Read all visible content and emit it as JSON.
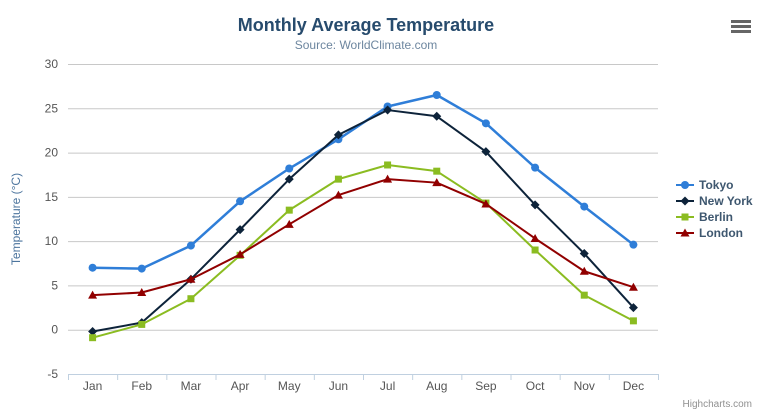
{
  "chart_data": {
    "type": "line",
    "title": "Monthly Average Temperature",
    "subtitle": "Source: WorldClimate.com",
    "categories": [
      "Jan",
      "Feb",
      "Mar",
      "Apr",
      "May",
      "Jun",
      "Jul",
      "Aug",
      "Sep",
      "Oct",
      "Nov",
      "Dec"
    ],
    "xlabel": "",
    "ylabel": "Temperature (°C)",
    "ylim": [
      -5,
      30
    ],
    "ytick_interval": 5,
    "grid": true,
    "legend_position": "right",
    "series": [
      {
        "name": "Tokyo",
        "color": "#2f7ed8",
        "marker": "circle",
        "values": [
          7.0,
          6.9,
          9.5,
          14.5,
          18.2,
          21.5,
          25.2,
          26.5,
          23.3,
          18.3,
          13.9,
          9.6
        ]
      },
      {
        "name": "New York",
        "color": "#0d233a",
        "marker": "diamond",
        "values": [
          -0.2,
          0.8,
          5.7,
          11.3,
          17.0,
          22.0,
          24.8,
          24.1,
          20.1,
          14.1,
          8.6,
          2.5
        ]
      },
      {
        "name": "Berlin",
        "color": "#8bbc21",
        "marker": "square",
        "values": [
          -0.9,
          0.6,
          3.5,
          8.4,
          13.5,
          17.0,
          18.6,
          17.9,
          14.3,
          9.0,
          3.9,
          1.0
        ]
      },
      {
        "name": "London",
        "color": "#910000",
        "marker": "triangle",
        "values": [
          3.9,
          4.2,
          5.7,
          8.5,
          11.9,
          15.2,
          17.0,
          16.6,
          14.2,
          10.3,
          6.6,
          4.8
        ]
      }
    ],
    "credit": "Highcharts.com",
    "colors": {
      "title": "#274b6d",
      "subtitle": "#6d869f",
      "axis_title": "#4d759e",
      "axis_labels": "#555555",
      "gridline": "#c8c8c8",
      "axis_line": "#c0d0e0",
      "legend_text": "#3E576F"
    }
  }
}
